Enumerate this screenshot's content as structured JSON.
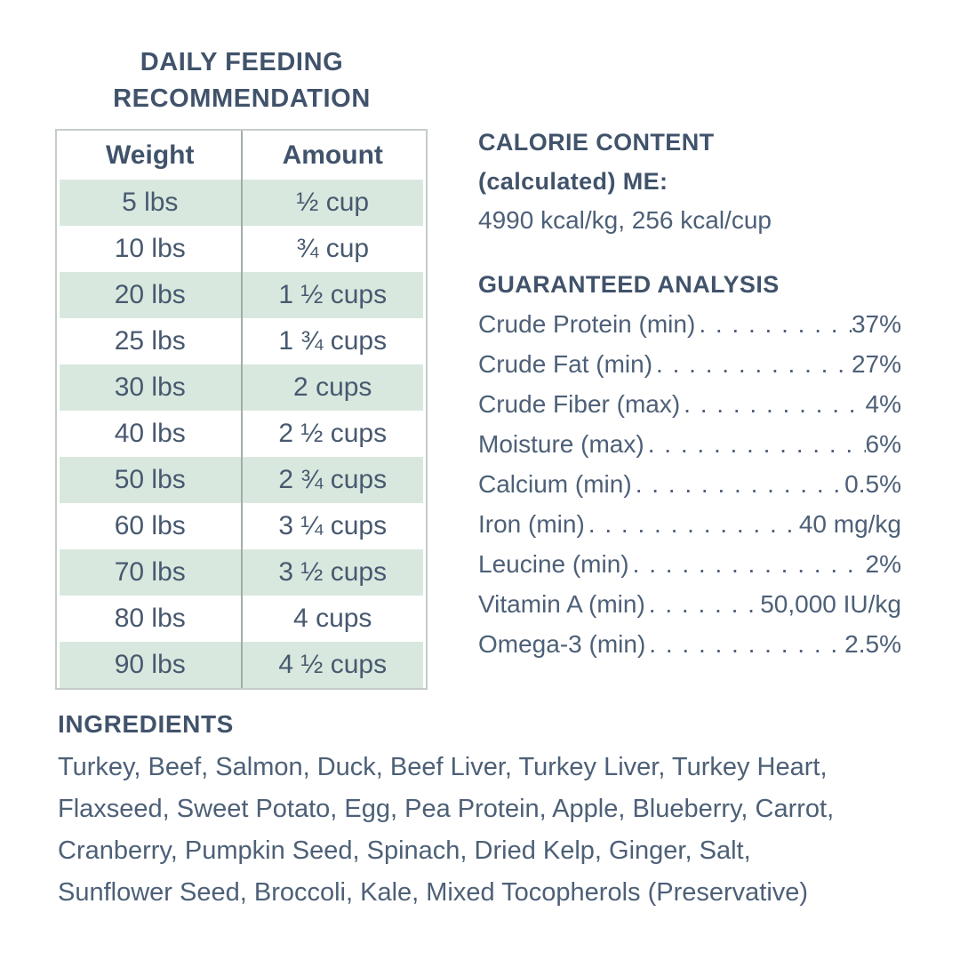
{
  "colors": {
    "heading": "#41536b",
    "body_text": "#4d6077",
    "row_green": "#d9e8de",
    "table_border": "#c5ccca",
    "column_divider": "#a2acaa"
  },
  "feeding": {
    "title_line1": "DAILY FEEDING",
    "title_line2": "RECOMMENDATION",
    "columns": {
      "weight": "Weight",
      "amount": "Amount"
    },
    "rows": [
      {
        "weight": "5 lbs",
        "amount": "½ cup"
      },
      {
        "weight": "10 lbs",
        "amount": "¾ cup"
      },
      {
        "weight": "20 lbs",
        "amount": "1 ½ cups"
      },
      {
        "weight": "25 lbs",
        "amount": "1 ¾ cups"
      },
      {
        "weight": "30 lbs",
        "amount": "2 cups"
      },
      {
        "weight": "40 lbs",
        "amount": "2 ½ cups"
      },
      {
        "weight": "50 lbs",
        "amount": "2 ¾ cups"
      },
      {
        "weight": "60 lbs",
        "amount": "3 ¼ cups"
      },
      {
        "weight": "70 lbs",
        "amount": "3 ½ cups"
      },
      {
        "weight": "80 lbs",
        "amount": "4 cups"
      },
      {
        "weight": "90 lbs",
        "amount": "4 ½ cups"
      }
    ]
  },
  "calorie": {
    "title_line1": "CALORIE CONTENT",
    "title_line2": "(calculated) ME:",
    "value": "4990 kcal/kg, 256 kcal/cup"
  },
  "analysis": {
    "title": "GUARANTEED ANALYSIS",
    "leader": ". . . . . . . . . . . . . . . . . . . . . . . . . . . . . . . . . . . . . . . .",
    "rows": [
      {
        "label": "Crude Protein (min)",
        "value": "37%"
      },
      {
        "label": "Crude Fat (min)",
        "value": "27%"
      },
      {
        "label": "Crude Fiber (max)",
        "value": "4%"
      },
      {
        "label": "Moisture (max)",
        "value": "6%"
      },
      {
        "label": "Calcium (min)",
        "value": "0.5%"
      },
      {
        "label": "Iron (min)",
        "value": "40 mg/kg"
      },
      {
        "label": "Leucine (min)",
        "value": "2%"
      },
      {
        "label": "Vitamin A (min)",
        "value": "50,000 IU/kg"
      },
      {
        "label": "Omega-3 (min)",
        "value": "2.5%"
      }
    ]
  },
  "ingredients": {
    "title": "INGREDIENTS",
    "lines": [
      "Turkey, Beef, Salmon, Duck, Beef Liver, Turkey Liver, Turkey Heart,",
      "Flaxseed, Sweet Potato, Egg, Pea Protein, Apple, Blueberry, Carrot,",
      "Cranberry, Pumpkin Seed, Spinach, Dried Kelp, Ginger, Salt,",
      "Sunflower Seed, Broccoli, Kale, Mixed Tocopherols (Preservative)"
    ]
  }
}
